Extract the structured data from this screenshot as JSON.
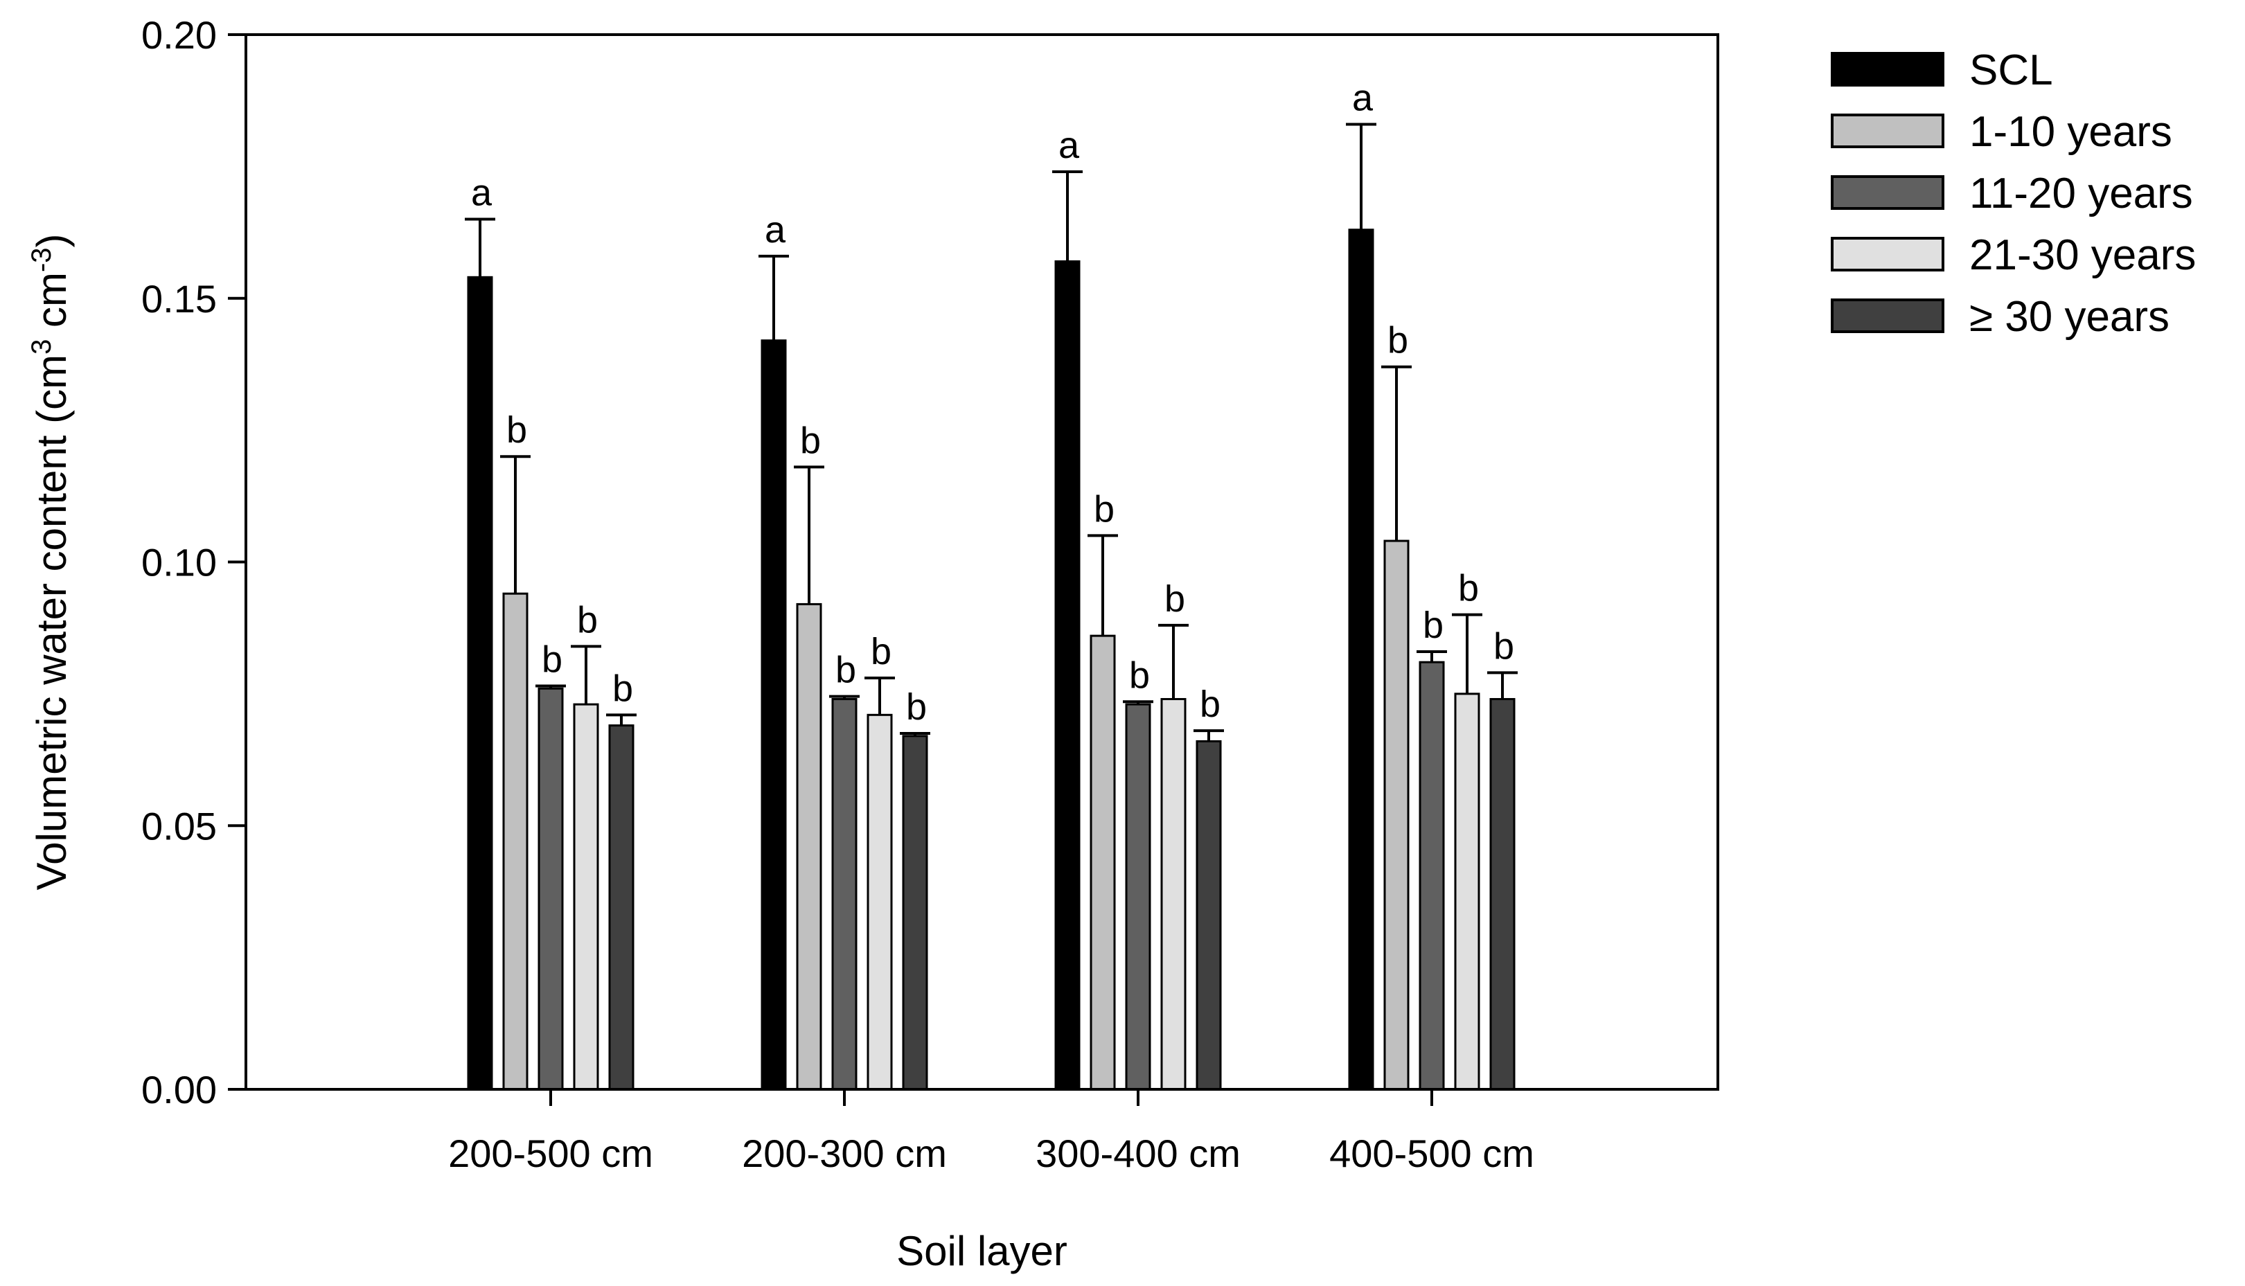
{
  "chart_data": {
    "type": "bar",
    "title": "",
    "xlabel": "Soil layer",
    "ylabel": "Volumetric water content (cm³ cm⁻³)",
    "ylabel_parts": {
      "main": "Volumetric water content (cm",
      "sup1": "3",
      "mid": " cm",
      "sup2": "-3",
      "end": ")"
    },
    "ylim": [
      0,
      0.2
    ],
    "yticks": [
      "0.00",
      "0.05",
      "0.10",
      "0.15",
      "0.20"
    ],
    "categories": [
      "200-500 cm",
      "200-300 cm",
      "300-400 cm",
      "400-500 cm"
    ],
    "grid": false,
    "legend_position": "right",
    "error_bars": "upper",
    "series": [
      {
        "name": "SCL",
        "color": "#000000",
        "values": [
          0.154,
          0.142,
          0.157,
          0.163
        ],
        "errors": [
          0.011,
          0.016,
          0.017,
          0.02
        ],
        "labels": [
          "a",
          "a",
          "a",
          "a"
        ]
      },
      {
        "name": "1-10 years",
        "color": "#c0c0c0",
        "values": [
          0.094,
          0.092,
          0.086,
          0.104
        ],
        "errors": [
          0.026,
          0.026,
          0.019,
          0.033
        ],
        "labels": [
          "b",
          "b",
          "b",
          "b"
        ]
      },
      {
        "name": "11-20 years",
        "color": "#606060",
        "values": [
          0.076,
          0.074,
          0.073,
          0.081
        ],
        "errors": [
          0.0005,
          0.0005,
          0.0005,
          0.002
        ],
        "labels": [
          "b",
          "b",
          "b",
          "b"
        ]
      },
      {
        "name": "21-30 years",
        "color": "#e0e0e0",
        "values": [
          0.073,
          0.071,
          0.074,
          0.075
        ],
        "errors": [
          0.011,
          0.007,
          0.014,
          0.015
        ],
        "labels": [
          "b",
          "b",
          "b",
          "b"
        ]
      },
      {
        "name": "≥  30 years",
        "color": "#404040",
        "values": [
          0.069,
          0.067,
          0.066,
          0.074
        ],
        "errors": [
          0.002,
          0.0005,
          0.002,
          0.005
        ],
        "labels": [
          "b",
          "b",
          "b",
          "b"
        ]
      }
    ]
  }
}
